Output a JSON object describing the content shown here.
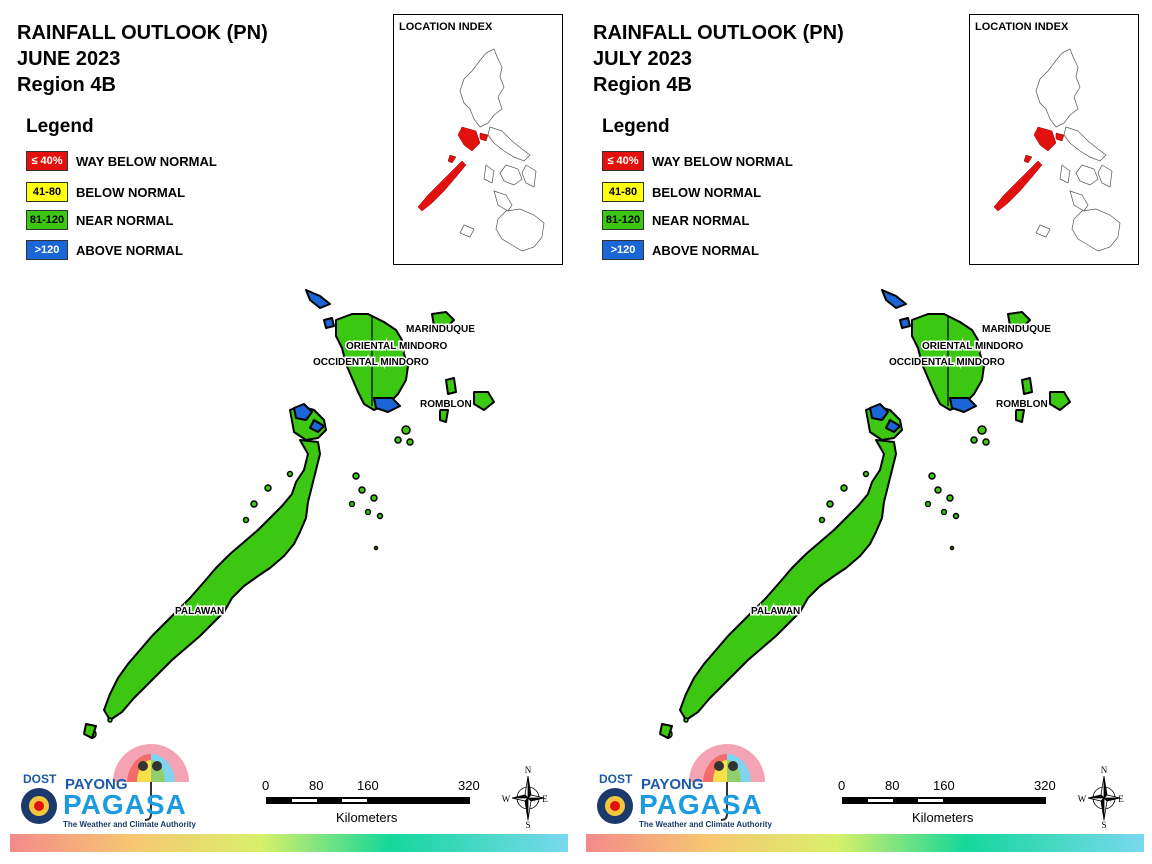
{
  "panels": [
    {
      "title": [
        "RAINFALL OUTLOOK (PN)",
        "JUNE 2023",
        "Region 4B"
      ],
      "legend_title": "Legend",
      "legend": [
        {
          "swatch_text": "≤ 40%",
          "label": "WAY BELOW NORMAL",
          "color": "#e3110e",
          "text_color": "#ffffff"
        },
        {
          "swatch_text": "41-80",
          "label": "BELOW NORMAL",
          "color": "#ffff10",
          "text_color": "#000000"
        },
        {
          "swatch_text": "81-120",
          "label": "NEAR NORMAL",
          "color": "#3cc812",
          "text_color": "#000000"
        },
        {
          "swatch_text": ">120",
          "label": "ABOVE NORMAL",
          "color": "#1b66d6",
          "text_color": "#ffffff"
        }
      ],
      "inset_title": "LOCATION INDEX",
      "map_labels": [
        "MARINDUQUE",
        "ORIENTAL MINDORO",
        "OCCIDENTAL MINDORO",
        "ROMBLON",
        "PALAWAN"
      ],
      "above_normal_areas": true
    },
    {
      "title": [
        "RAINFALL OUTLOOK (PN)",
        "JULY 2023",
        "Region 4B"
      ],
      "legend_title": "Legend",
      "legend": [
        {
          "swatch_text": "≤ 40%",
          "label": "WAY BELOW NORMAL",
          "color": "#e3110e",
          "text_color": "#ffffff"
        },
        {
          "swatch_text": "41-80",
          "label": "BELOW NORMAL",
          "color": "#ffff10",
          "text_color": "#000000"
        },
        {
          "swatch_text": "81-120",
          "label": "NEAR NORMAL",
          "color": "#3cc812",
          "text_color": "#000000"
        },
        {
          "swatch_text": ">120",
          "label": "ABOVE NORMAL",
          "color": "#1b66d6",
          "text_color": "#ffffff"
        }
      ],
      "inset_title": "LOCATION INDEX",
      "map_labels": [
        "MARINDUQUE",
        "ORIENTAL MINDORO",
        "OCCIDENTAL MINDORO",
        "ROMBLON",
        "PALAWAN"
      ],
      "above_normal_areas": true
    }
  ],
  "logo": {
    "dost": "DOST",
    "payong": "PAYONG",
    "pagasa": "PAGASA",
    "tagline": "The Weather and Climate Authority"
  },
  "scale": {
    "ticks": [
      "0",
      "80",
      "160",
      "320"
    ],
    "units": "Kilometers"
  },
  "compass": {
    "n": "N",
    "s": "S",
    "e": "E",
    "w": "W"
  },
  "colors": {
    "inset_highlight": "#e3110e",
    "land": "#3cc812",
    "above_normal": "#1b66d6"
  }
}
